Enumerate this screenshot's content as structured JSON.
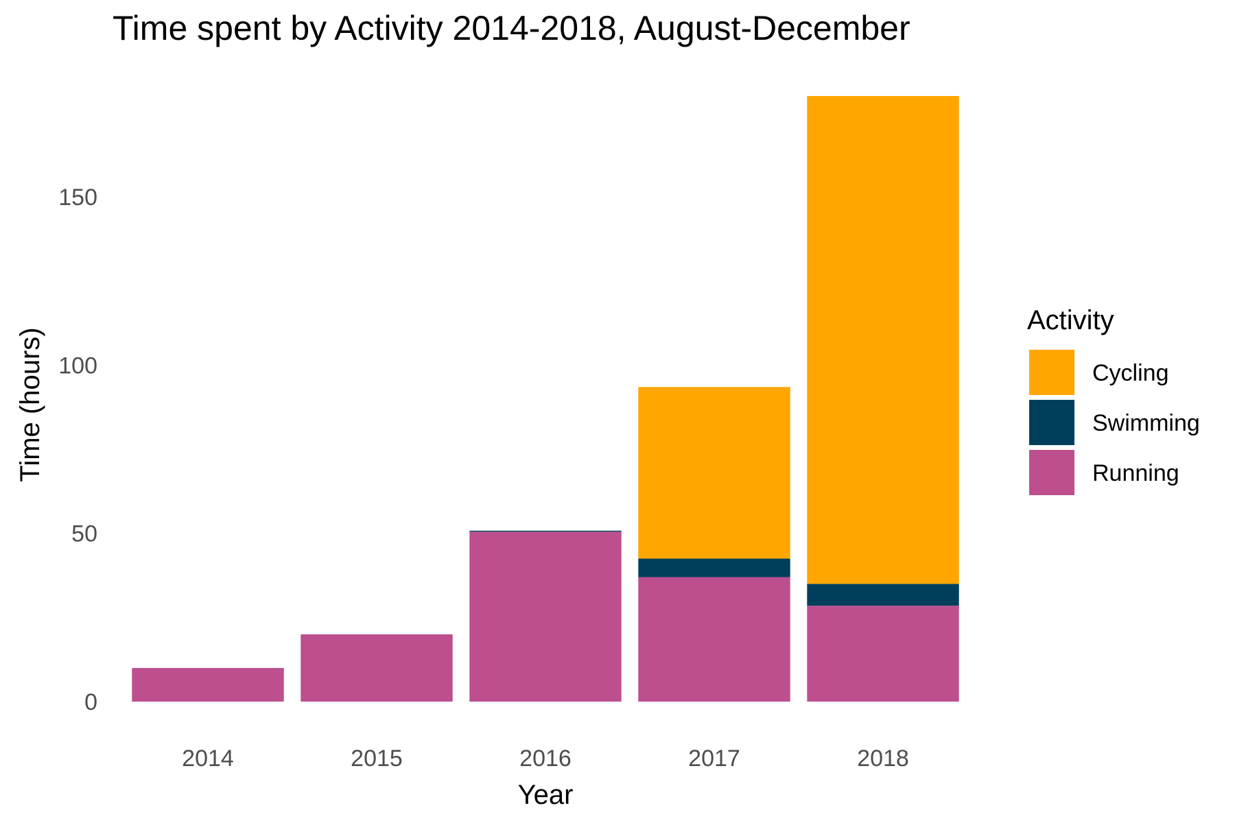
{
  "chart_data": {
    "type": "bar",
    "stacked": true,
    "title": "Time spent by Activity 2014-2018, August-December",
    "xlabel": "Year",
    "ylabel": "Time (hours)",
    "categories": [
      "2014",
      "2015",
      "2016",
      "2017",
      "2018"
    ],
    "ylim": [
      0,
      180
    ],
    "yticks": [
      0,
      50,
      100,
      150
    ],
    "grid": false,
    "legend": {
      "title": "Activity",
      "placement": "right",
      "entries": [
        "Cycling",
        "Swimming",
        "Running"
      ]
    },
    "series": [
      {
        "name": "Running",
        "color": "#bd4f8e",
        "values": [
          10,
          20,
          50.5,
          37,
          28.5
        ]
      },
      {
        "name": "Swimming",
        "color": "#003f5c",
        "values": [
          0,
          0,
          0.3,
          5.5,
          6.5
        ]
      },
      {
        "name": "Cycling",
        "color": "#ffa600",
        "values": [
          0,
          0,
          0,
          51,
          145
        ]
      }
    ]
  }
}
